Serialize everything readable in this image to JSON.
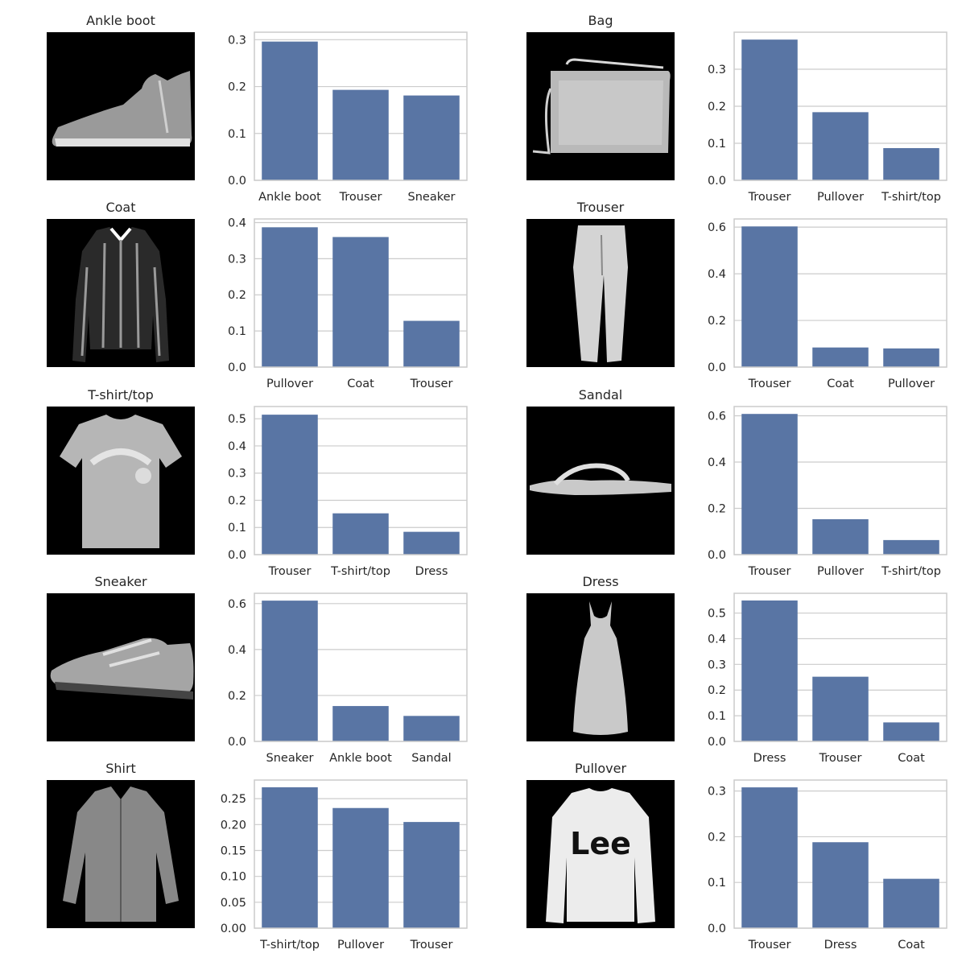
{
  "figure": {
    "bar_color": "#5975a4",
    "grid_color": "#cccccc",
    "image_background": "#000000"
  },
  "chart_data": [
    {
      "type": "bar",
      "image_title": "Ankle boot",
      "image_icon": "ankle-boot-image",
      "categories": [
        "Ankle boot",
        "Trouser",
        "Sneaker"
      ],
      "values": [
        0.296,
        0.193,
        0.181
      ],
      "ylim": [
        0,
        0.316
      ],
      "yticks": [
        "0.0",
        "0.1",
        "0.2",
        "0.3"
      ],
      "ytick_values": [
        0,
        0.1,
        0.2,
        0.3
      ],
      "grid": true
    },
    {
      "type": "bar",
      "image_title": "Bag",
      "image_icon": "bag-image",
      "categories": [
        "Trouser",
        "Pullover",
        "T-shirt/top"
      ],
      "values": [
        0.38,
        0.184,
        0.087
      ],
      "ylim": [
        0,
        0.4
      ],
      "yticks": [
        "0.0",
        "0.1",
        "0.2",
        "0.3"
      ],
      "ytick_values": [
        0,
        0.1,
        0.2,
        0.3
      ],
      "grid": true
    },
    {
      "type": "bar",
      "image_title": "Coat",
      "image_icon": "coat-image",
      "categories": [
        "Pullover",
        "Coat",
        "Trouser"
      ],
      "values": [
        0.387,
        0.36,
        0.128
      ],
      "ylim": [
        0,
        0.41
      ],
      "yticks": [
        "0.0",
        "0.1",
        "0.2",
        "0.3",
        "0.4"
      ],
      "ytick_values": [
        0,
        0.1,
        0.2,
        0.3,
        0.4
      ],
      "grid": true
    },
    {
      "type": "bar",
      "image_title": "Trouser",
      "image_icon": "trouser-image",
      "categories": [
        "Trouser",
        "Coat",
        "Pullover"
      ],
      "values": [
        0.603,
        0.084,
        0.08
      ],
      "ylim": [
        0,
        0.635
      ],
      "yticks": [
        "0.0",
        "0.2",
        "0.4",
        "0.6"
      ],
      "ytick_values": [
        0,
        0.2,
        0.4,
        0.6
      ],
      "grid": true
    },
    {
      "type": "bar",
      "image_title": "T-shirt/top",
      "image_icon": "tshirt-image",
      "categories": [
        "Trouser",
        "T-shirt/top",
        "Dress"
      ],
      "values": [
        0.515,
        0.152,
        0.084
      ],
      "ylim": [
        0,
        0.545
      ],
      "yticks": [
        "0.0",
        "0.1",
        "0.2",
        "0.3",
        "0.4",
        "0.5"
      ],
      "ytick_values": [
        0,
        0.1,
        0.2,
        0.3,
        0.4,
        0.5
      ],
      "grid": true
    },
    {
      "type": "bar",
      "image_title": "Sandal",
      "image_icon": "sandal-image",
      "categories": [
        "Trouser",
        "Pullover",
        "T-shirt/top"
      ],
      "values": [
        0.608,
        0.153,
        0.063
      ],
      "ylim": [
        0,
        0.64
      ],
      "yticks": [
        "0.0",
        "0.2",
        "0.4",
        "0.6"
      ],
      "ytick_values": [
        0,
        0.2,
        0.4,
        0.6
      ],
      "grid": true
    },
    {
      "type": "bar",
      "image_title": "Sneaker",
      "image_icon": "sneaker-image",
      "categories": [
        "Sneaker",
        "Ankle boot",
        "Sandal"
      ],
      "values": [
        0.613,
        0.154,
        0.111
      ],
      "ylim": [
        0,
        0.645
      ],
      "yticks": [
        "0.0",
        "0.2",
        "0.4",
        "0.6"
      ],
      "ytick_values": [
        0,
        0.2,
        0.4,
        0.6
      ],
      "grid": true
    },
    {
      "type": "bar",
      "image_title": "Dress",
      "image_icon": "dress-image",
      "categories": [
        "Dress",
        "Trouser",
        "Coat"
      ],
      "values": [
        0.549,
        0.252,
        0.074
      ],
      "ylim": [
        0,
        0.577
      ],
      "yticks": [
        "0.0",
        "0.1",
        "0.2",
        "0.3",
        "0.4",
        "0.5"
      ],
      "ytick_values": [
        0,
        0.1,
        0.2,
        0.3,
        0.4,
        0.5
      ],
      "grid": true
    },
    {
      "type": "bar",
      "image_title": "Shirt",
      "image_icon": "shirt-image",
      "categories": [
        "T-shirt/top",
        "Pullover",
        "Trouser"
      ],
      "values": [
        0.272,
        0.232,
        0.205
      ],
      "ylim": [
        0,
        0.286
      ],
      "yticks": [
        "0.00",
        "0.05",
        "0.10",
        "0.15",
        "0.20",
        "0.25"
      ],
      "ytick_values": [
        0,
        0.05,
        0.1,
        0.15,
        0.2,
        0.25
      ],
      "grid": true
    },
    {
      "type": "bar",
      "image_title": "Pullover",
      "image_icon": "pullover-image",
      "categories": [
        "Trouser",
        "Dress",
        "Coat"
      ],
      "values": [
        0.308,
        0.188,
        0.108
      ],
      "ylim": [
        0,
        0.324
      ],
      "yticks": [
        "0.0",
        "0.1",
        "0.2",
        "0.3"
      ],
      "ytick_values": [
        0,
        0.1,
        0.2,
        0.3
      ],
      "grid": true
    }
  ]
}
